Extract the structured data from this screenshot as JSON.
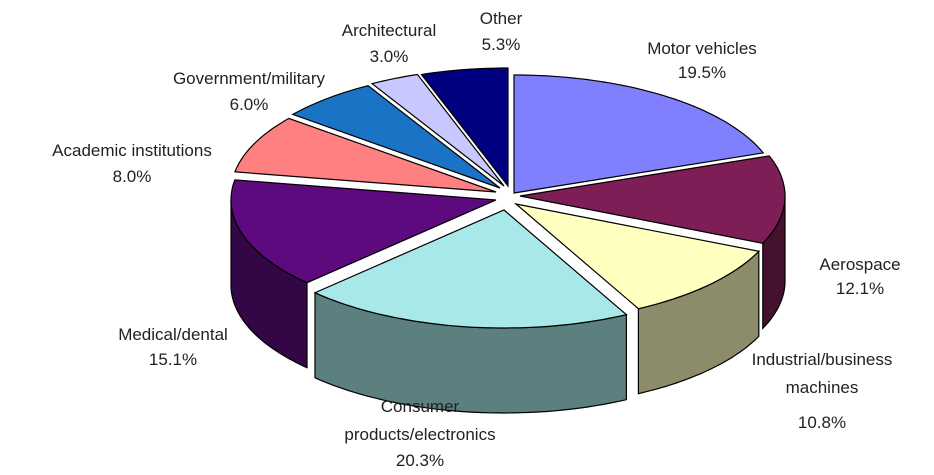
{
  "chart_data": {
    "type": "pie",
    "title": "",
    "style": "3d-exploded-tilt",
    "start": "12 o'clock",
    "direction": "clockwise",
    "slices": [
      {
        "label": "Motor vehicles",
        "value": 19.5,
        "value_label": "19.5%",
        "color": "#8080FF"
      },
      {
        "label": "Aerospace",
        "value": 12.1,
        "value_label": "12.1%",
        "color": "#7D1F56"
      },
      {
        "label": "Industrial/business machines",
        "value": 10.8,
        "value_label": "10.8%",
        "color": "#FFFFC0"
      },
      {
        "label": "Consumer products/electronics",
        "value": 20.3,
        "value_label": "20.3%",
        "color": "#A8E8E8"
      },
      {
        "label": "Medical/dental",
        "value": 15.1,
        "value_label": "15.1%",
        "color": "#5C0A7E"
      },
      {
        "label": "Academic institutions",
        "value": 8.0,
        "value_label": "8.0%",
        "color": "#FF8080"
      },
      {
        "label": "Government/military",
        "value": 6.0,
        "value_label": "6.0%",
        "color": "#1A73C4"
      },
      {
        "label": "Architectural",
        "value": 3.0,
        "value_label": "3.0%",
        "color": "#C8C8FF"
      },
      {
        "label": "Other",
        "value": 5.3,
        "value_label": "5.3%",
        "color": "#000080"
      }
    ]
  }
}
